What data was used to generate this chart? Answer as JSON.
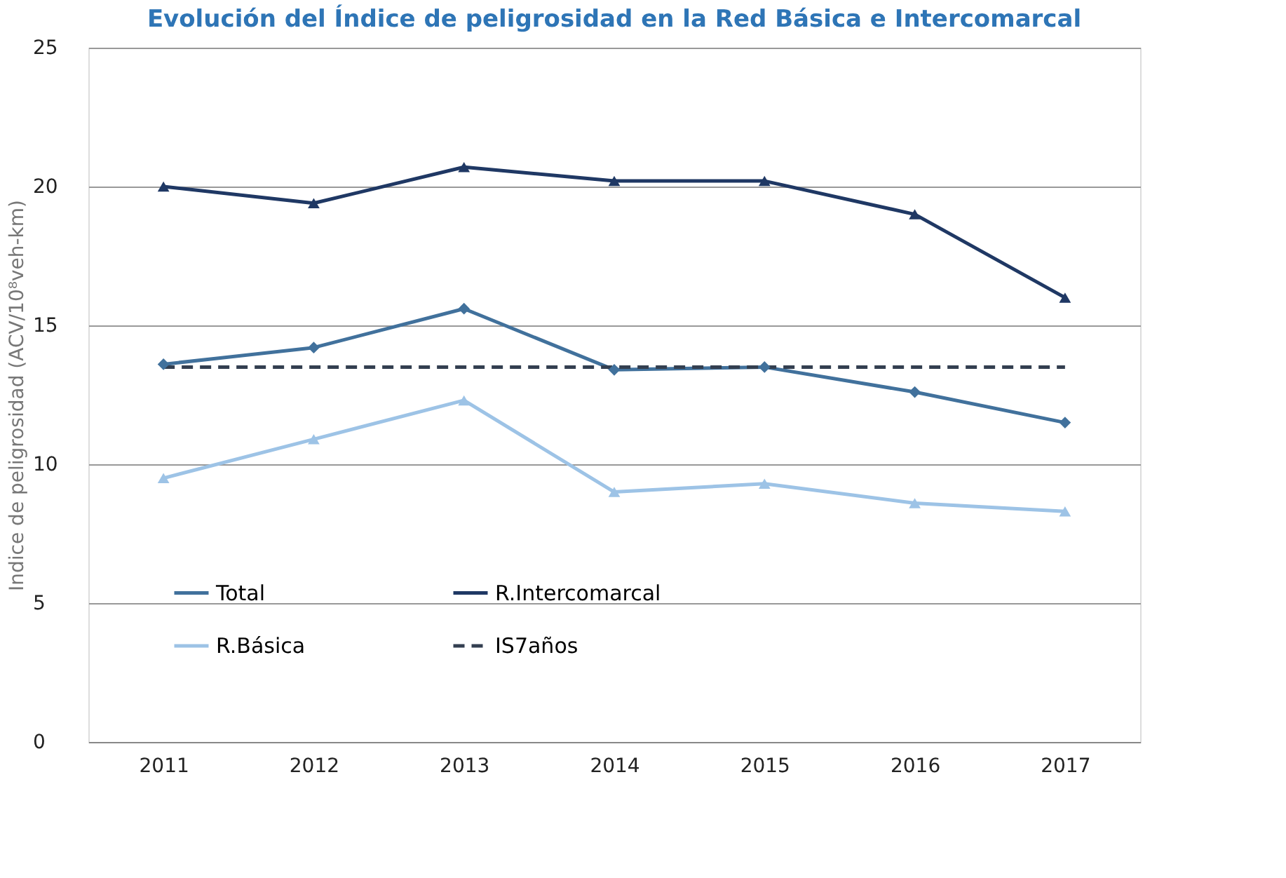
{
  "chart_data": {
    "type": "line",
    "title": "Evolución del Índice de peligrosidad en la Red Básica e Intercomarcal",
    "ylabel": "Indice de peligrosidad  (ACV/10⁸veh-km)",
    "categories": [
      "2011",
      "2012",
      "2013",
      "2014",
      "2015",
      "2016",
      "2017"
    ],
    "series": [
      {
        "name": "Total",
        "color": "#41719c",
        "marker": "diamond",
        "line_style": "solid",
        "values": [
          13.6,
          14.2,
          15.6,
          13.4,
          13.5,
          12.6,
          11.5
        ]
      },
      {
        "name": "R.Básica",
        "color": "#9dc3e6",
        "marker": "triangle",
        "line_style": "solid",
        "values": [
          9.5,
          10.9,
          12.3,
          9.0,
          9.3,
          8.6,
          8.3
        ]
      },
      {
        "name": "R.Intercomarcal",
        "color": "#1f3864",
        "marker": "triangle",
        "line_style": "solid",
        "values": [
          20.0,
          19.4,
          20.7,
          20.2,
          20.2,
          19.0,
          16.0
        ]
      },
      {
        "name": "IS7años",
        "color": "#333f50",
        "marker": "none",
        "line_style": "dashed",
        "values": [
          13.5,
          13.5,
          13.5,
          13.5,
          13.5,
          13.5,
          13.5
        ]
      }
    ],
    "ylim": [
      0,
      25
    ],
    "yticks": [
      0,
      5,
      10,
      15,
      20,
      25
    ],
    "grid": "y",
    "legend": "bottom"
  }
}
